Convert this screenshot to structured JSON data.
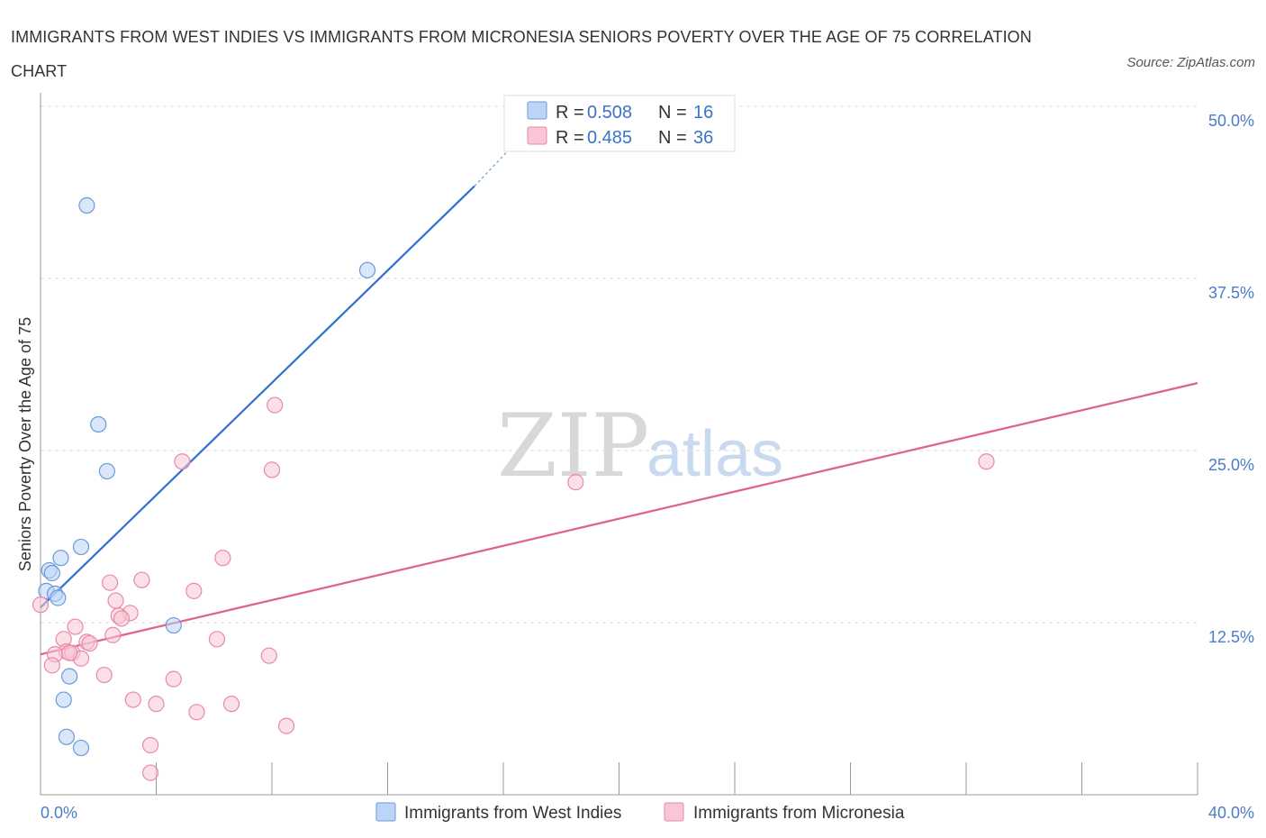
{
  "title": "IMMIGRANTS FROM WEST INDIES VS IMMIGRANTS FROM MICRONESIA SENIORS POVERTY OVER THE AGE OF 75 CORRELATION CHART",
  "source": "Source: ZipAtlas.com",
  "watermark": {
    "part1": "ZIP",
    "part2": "atlas"
  },
  "colors": {
    "west_indies_fill": "#bcd4f5",
    "west_indies_stroke": "#6a9ad8",
    "west_indies_line": "#2f6fd4",
    "micronesia_fill": "#f8c6d5",
    "micronesia_stroke": "#e88aa6",
    "micronesia_line": "#e0628a",
    "tick_text": "#4a7cc9"
  },
  "legend": {
    "series": [
      {
        "r_label": "R =",
        "r_value": "0.508",
        "n_label": "N =",
        "n_value": "16"
      },
      {
        "r_label": "R =",
        "r_value": "0.485",
        "n_label": "N =",
        "n_value": "36"
      }
    ]
  },
  "chart_data": {
    "type": "scatter",
    "title": "IMMIGRANTS FROM WEST INDIES VS IMMIGRANTS FROM MICRONESIA SENIORS POVERTY OVER THE AGE OF 75 CORRELATION CHART",
    "xlabel": "",
    "ylabel": "Seniors Poverty Over the Age of 75",
    "xlim": [
      0,
      40
    ],
    "ylim": [
      0,
      50
    ],
    "x_tick_labels": [
      "0.0%",
      "40.0%"
    ],
    "y_ticks": [
      12.5,
      25,
      37.5,
      50
    ],
    "y_tick_labels": [
      "12.5%",
      "25.0%",
      "37.5%",
      "50.0%"
    ],
    "grid": true,
    "legend_position": "top-center",
    "series": [
      {
        "name": "Immigrants from West Indies",
        "r": 0.508,
        "n": 16,
        "points": [
          [
            1.6,
            42.8
          ],
          [
            11.3,
            38.1
          ],
          [
            2.0,
            26.9
          ],
          [
            2.3,
            23.5
          ],
          [
            1.4,
            18.0
          ],
          [
            0.7,
            17.2
          ],
          [
            0.3,
            16.3
          ],
          [
            0.4,
            16.1
          ],
          [
            0.2,
            14.8
          ],
          [
            0.5,
            14.6
          ],
          [
            0.6,
            14.3
          ],
          [
            4.6,
            12.3
          ],
          [
            1.0,
            8.6
          ],
          [
            0.8,
            6.9
          ],
          [
            0.9,
            4.2
          ],
          [
            1.4,
            3.4
          ]
        ],
        "trendline": {
          "x": [
            0.0,
            15.0
          ],
          "y": [
            13.6,
            44.2
          ]
        },
        "trendline_extension": {
          "x": [
            15.0,
            16.4
          ],
          "y": [
            44.2,
            47.3
          ]
        }
      },
      {
        "name": "Immigrants from Micronesia",
        "r": 0.485,
        "n": 36,
        "points": [
          [
            8.1,
            28.3
          ],
          [
            4.9,
            24.2
          ],
          [
            8.0,
            23.6
          ],
          [
            32.7,
            24.2
          ],
          [
            18.5,
            22.7
          ],
          [
            6.3,
            17.2
          ],
          [
            3.5,
            15.6
          ],
          [
            2.4,
            15.4
          ],
          [
            5.3,
            14.8
          ],
          [
            2.6,
            14.1
          ],
          [
            0.0,
            13.8
          ],
          [
            3.1,
            13.2
          ],
          [
            2.7,
            13.0
          ],
          [
            2.8,
            12.8
          ],
          [
            1.2,
            12.2
          ],
          [
            2.5,
            11.6
          ],
          [
            0.8,
            11.3
          ],
          [
            6.1,
            11.3
          ],
          [
            1.6,
            11.1
          ],
          [
            1.7,
            11.0
          ],
          [
            0.9,
            10.4
          ],
          [
            1.1,
            10.3
          ],
          [
            0.5,
            10.2
          ],
          [
            7.9,
            10.1
          ],
          [
            1.4,
            9.9
          ],
          [
            0.4,
            9.4
          ],
          [
            2.2,
            8.7
          ],
          [
            4.6,
            8.4
          ],
          [
            3.2,
            6.9
          ],
          [
            4.0,
            6.6
          ],
          [
            6.6,
            6.6
          ],
          [
            5.4,
            6.0
          ],
          [
            8.5,
            5.0
          ],
          [
            3.8,
            3.6
          ],
          [
            3.8,
            1.6
          ],
          [
            1.0,
            10.3
          ]
        ],
        "trendline": {
          "x": [
            0.0,
            40.0
          ],
          "y": [
            10.2,
            29.9
          ]
        }
      }
    ]
  }
}
